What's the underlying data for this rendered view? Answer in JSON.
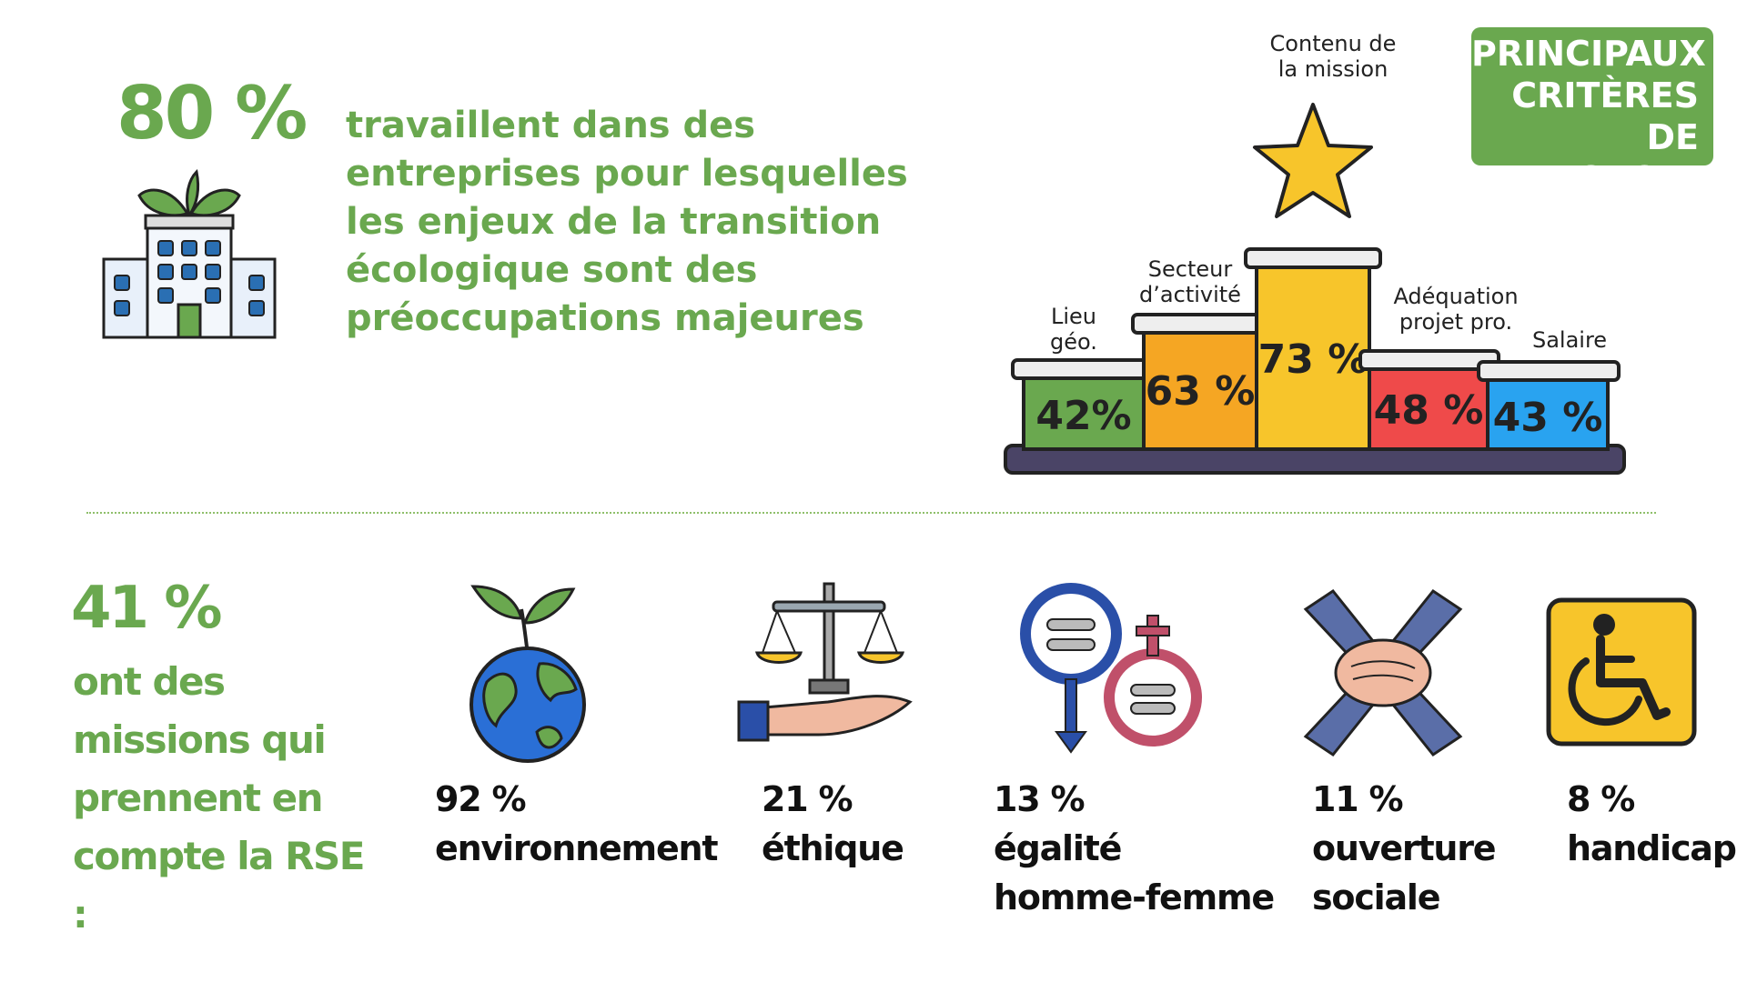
{
  "top": {
    "stat": "80 %",
    "text": "travaillent dans des entreprises pour lesquelles les enjeux de la transition écologique sont des préoccupations majeures",
    "icon": "building-plant-icon"
  },
  "criteria": {
    "badge_lines": [
      "PRINCIPAUX",
      "CRITÈRES DE",
      "CHOIX"
    ],
    "top_label": [
      "Contenu de",
      "la mission"
    ],
    "items": [
      {
        "label": [
          "Lieu",
          "géo."
        ],
        "value": "42%",
        "color": "#6aa84f"
      },
      {
        "label": [
          "Secteur",
          "d’activité"
        ],
        "value": "63 %",
        "color": "#f5a623"
      },
      {
        "label": [],
        "value": "73 %",
        "color": "#f7c52b"
      },
      {
        "label": [
          "Adéquation",
          "projet pro."
        ],
        "value": "48 %",
        "color": "#ef4a4a"
      },
      {
        "label": [
          "Salaire"
        ],
        "value": "43 %",
        "color": "#29a3f0"
      }
    ]
  },
  "bottom": {
    "stat": "41 %",
    "text_lines": [
      "ont des",
      "missions qui",
      "prennent en",
      "compte la RSE :"
    ],
    "categories": [
      {
        "value": "92 %",
        "lines": [
          "environnement"
        ],
        "icon": "earth-plant-icon"
      },
      {
        "value": "21 %",
        "lines": [
          "éthique"
        ],
        "icon": "scales-hand-icon"
      },
      {
        "value": "13 %",
        "lines": [
          "égalité",
          "homme-femme"
        ],
        "icon": "gender-equality-icon"
      },
      {
        "value": "11 %",
        "lines": [
          "ouverture",
          "sociale"
        ],
        "icon": "joined-hands-icon"
      },
      {
        "value": "8 %",
        "lines": [
          "handicap"
        ],
        "icon": "wheelchair-icon"
      }
    ]
  },
  "colors": {
    "accent_green": "#6aa84f",
    "podium_base": "#4a4466"
  }
}
